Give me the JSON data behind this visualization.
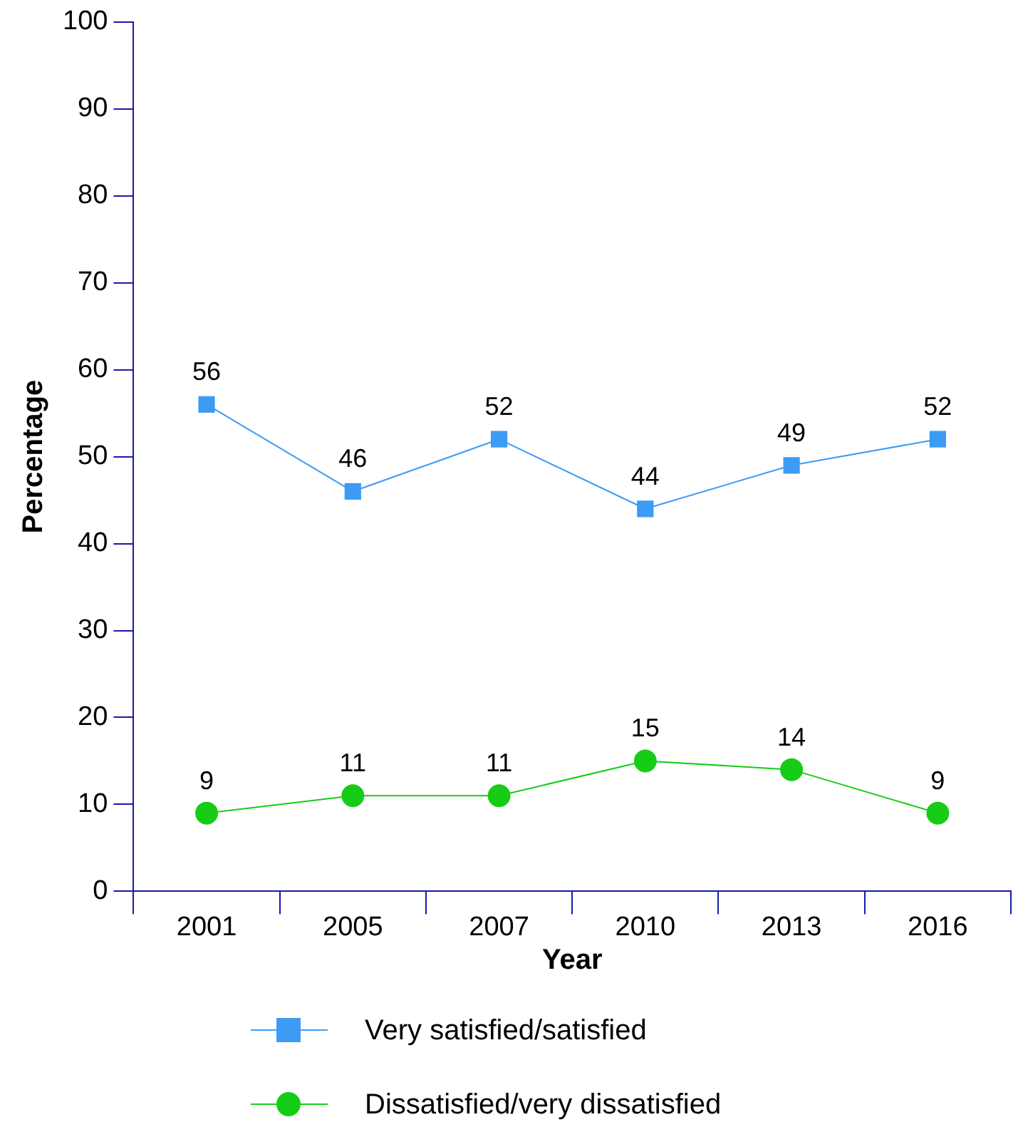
{
  "chart_data": {
    "type": "line",
    "xlabel": "Year",
    "ylabel": "Percentage",
    "categories": [
      "2001",
      "2005",
      "2007",
      "2010",
      "2013",
      "2016"
    ],
    "ylim": [
      0,
      100
    ],
    "yticks": [
      0,
      10,
      20,
      30,
      40,
      50,
      60,
      70,
      80,
      90,
      100
    ],
    "legend": "bottom",
    "data_labels": true,
    "series": [
      {
        "name": "Very satisfied/satisfied",
        "color": "#3d9bf5",
        "marker": "square",
        "values": [
          56,
          46,
          52,
          44,
          49,
          52
        ]
      },
      {
        "name": "Dissatisfied/very dissatisfied",
        "color": "#17cc17",
        "marker": "circle",
        "values": [
          9,
          11,
          11,
          15,
          14,
          9
        ]
      }
    ]
  }
}
